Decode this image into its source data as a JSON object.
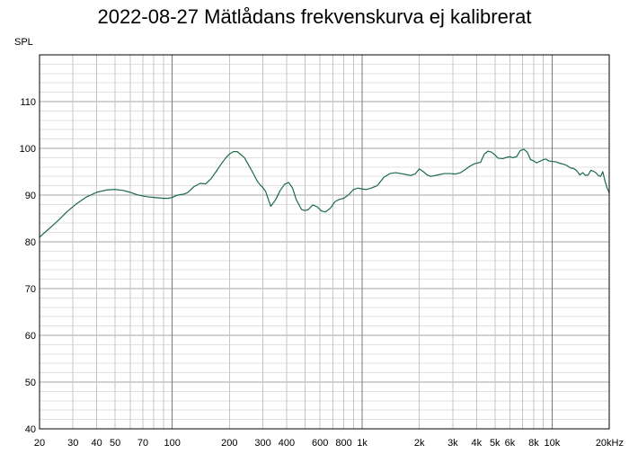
{
  "chart_data": {
    "type": "line",
    "title": "2022-08-27 Mätlådans frekvenskurva ej kalibrerat",
    "ylabel": "SPL",
    "xlabel": "",
    "xscale": "log",
    "xlim": [
      20,
      20000
    ],
    "ylim": [
      40,
      120
    ],
    "grid": true,
    "y_ticks": [
      40,
      50,
      60,
      70,
      80,
      90,
      100,
      110
    ],
    "x_ticks": [
      {
        "value": 20,
        "label": "20"
      },
      {
        "value": 30,
        "label": "30"
      },
      {
        "value": 40,
        "label": "40"
      },
      {
        "value": 50,
        "label": "50"
      },
      {
        "value": 70,
        "label": "70"
      },
      {
        "value": 100,
        "label": "100"
      },
      {
        "value": 200,
        "label": "200"
      },
      {
        "value": 300,
        "label": "300"
      },
      {
        "value": 400,
        "label": "400"
      },
      {
        "value": 600,
        "label": "600"
      },
      {
        "value": 800,
        "label": "800"
      },
      {
        "value": 1000,
        "label": "1k"
      },
      {
        "value": 2000,
        "label": "2k"
      },
      {
        "value": 3000,
        "label": "3k"
      },
      {
        "value": 4000,
        "label": "4k"
      },
      {
        "value": 5000,
        "label": "5k"
      },
      {
        "value": 6000,
        "label": "6k"
      },
      {
        "value": 8000,
        "label": "8k"
      },
      {
        "value": 10000,
        "label": "10k"
      },
      {
        "value": 20000,
        "label": "20kHz"
      }
    ],
    "series_color": "#1a6b46",
    "series": [
      {
        "x": [
          20,
          22,
          25,
          28,
          31,
          35,
          40,
          45,
          50,
          55,
          60,
          65,
          70,
          75,
          80,
          85,
          90,
          95,
          100,
          105,
          110,
          115,
          120,
          130,
          140,
          150,
          160,
          170,
          180,
          190,
          200,
          210,
          220,
          240,
          260,
          280,
          290,
          300,
          310,
          330,
          350,
          370,
          390,
          410,
          430,
          450,
          480,
          500,
          520,
          550,
          580,
          610,
          640,
          680,
          720,
          760,
          800,
          850,
          900,
          950,
          1000,
          1050,
          1100,
          1200,
          1300,
          1400,
          1500,
          1600,
          1700,
          1800,
          1900,
          2000,
          2100,
          2200,
          2300,
          2500,
          2700,
          2900,
          3100,
          3300,
          3500,
          3700,
          3900,
          4000,
          4200,
          4400,
          4600,
          4800,
          5000,
          5200,
          5500,
          5800,
          6000,
          6200,
          6500,
          6800,
          7100,
          7400,
          7700,
          8000,
          8300,
          8700,
          9000,
          9300,
          9600,
          10000,
          10500,
          11000,
          11500,
          12000,
          12500,
          13000,
          13500,
          14000,
          14500,
          15000,
          15500,
          16000,
          16500,
          17000,
          17500,
          18000,
          18500,
          19000,
          19500,
          20000
        ],
        "y": [
          81,
          82.5,
          84.5,
          86.5,
          88,
          89.5,
          90.6,
          91.1,
          91.2,
          91,
          90.6,
          90.1,
          89.8,
          89.6,
          89.5,
          89.4,
          89.3,
          89.3,
          89.5,
          89.9,
          90.1,
          90.2,
          90.5,
          91.8,
          92.5,
          92.4,
          93.5,
          95,
          96.5,
          97.8,
          98.8,
          99.3,
          99.3,
          98,
          95.5,
          93,
          92.2,
          91.6,
          90.8,
          87.6,
          89,
          91,
          92.3,
          92.7,
          91.5,
          89,
          86.9,
          86.7,
          86.9,
          87.9,
          87.5,
          86.6,
          86.4,
          87.2,
          88.6,
          89.1,
          89.3,
          90.1,
          91.2,
          91.5,
          91.3,
          91.2,
          91.4,
          92,
          93.8,
          94.6,
          94.8,
          94.6,
          94.4,
          94.2,
          94.5,
          95.6,
          95,
          94.3,
          94,
          94.3,
          94.6,
          94.6,
          94.5,
          94.8,
          95.5,
          96.2,
          96.7,
          96.8,
          97,
          98.8,
          99.4,
          99.2,
          98.6,
          97.9,
          97.8,
          98.1,
          98.2,
          98,
          98.2,
          99.5,
          99.8,
          99.2,
          97.6,
          97.3,
          96.9,
          97.3,
          97.6,
          97.7,
          97.3,
          97.2,
          97.1,
          96.8,
          96.6,
          96.3,
          95.8,
          95.7,
          95.2,
          94.3,
          94.8,
          94.2,
          94.3,
          95.3,
          95.1,
          94.8,
          94.2,
          94,
          95,
          93,
          91.5,
          90.5
        ]
      }
    ]
  }
}
